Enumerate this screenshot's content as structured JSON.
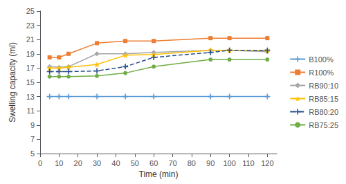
{
  "chart_data": {
    "type": "line",
    "xlabel": "Time (min)",
    "ylabel": "Swelling capacity (ml)",
    "x": [
      5,
      10,
      15,
      30,
      45,
      60,
      90,
      100,
      120
    ],
    "series": [
      {
        "name": "B100%",
        "color": "#5B9BD5",
        "marker": "plus",
        "line_style": "solid",
        "values": [
          13.0,
          13.0,
          13.0,
          13.0,
          13.0,
          13.0,
          13.0,
          13.0,
          13.0
        ]
      },
      {
        "name": "R100%",
        "color": "#ED7D31",
        "marker": "square",
        "line_style": "solid",
        "values": [
          18.5,
          18.5,
          19.0,
          20.5,
          20.8,
          20.8,
          21.2,
          21.2,
          21.2
        ]
      },
      {
        "name": "RB90:10",
        "color": "#A5A5A5",
        "marker": "diamond",
        "line_style": "solid",
        "values": [
          17.2,
          17.1,
          17.2,
          19.0,
          19.0,
          19.2,
          19.5,
          19.5,
          19.3
        ]
      },
      {
        "name": "RB85:15",
        "color": "#FFC000",
        "marker": "star",
        "line_style": "solid",
        "values": [
          17.0,
          17.0,
          17.1,
          17.5,
          18.8,
          18.9,
          19.5,
          19.5,
          19.5
        ]
      },
      {
        "name": "RB80:20",
        "color": "#264F8C",
        "marker": "plus",
        "line_style": "dashed",
        "values": [
          16.5,
          16.5,
          16.5,
          16.6,
          17.2,
          18.5,
          19.2,
          19.5,
          19.5
        ]
      },
      {
        "name": "RB75:25",
        "color": "#70AD47",
        "marker": "circle",
        "line_style": "solid",
        "values": [
          15.8,
          15.8,
          15.8,
          15.9,
          16.3,
          17.2,
          18.2,
          18.2,
          18.2
        ]
      }
    ],
    "xlim": [
      0,
      125
    ],
    "xticks": [
      0,
      10,
      20,
      30,
      40,
      50,
      60,
      70,
      80,
      90,
      100,
      110,
      120
    ],
    "ylim": [
      5,
      25
    ],
    "yticks": [
      5,
      7,
      9,
      11,
      13,
      15,
      17,
      19,
      21,
      23,
      25
    ],
    "legend": "right",
    "grid": false
  }
}
